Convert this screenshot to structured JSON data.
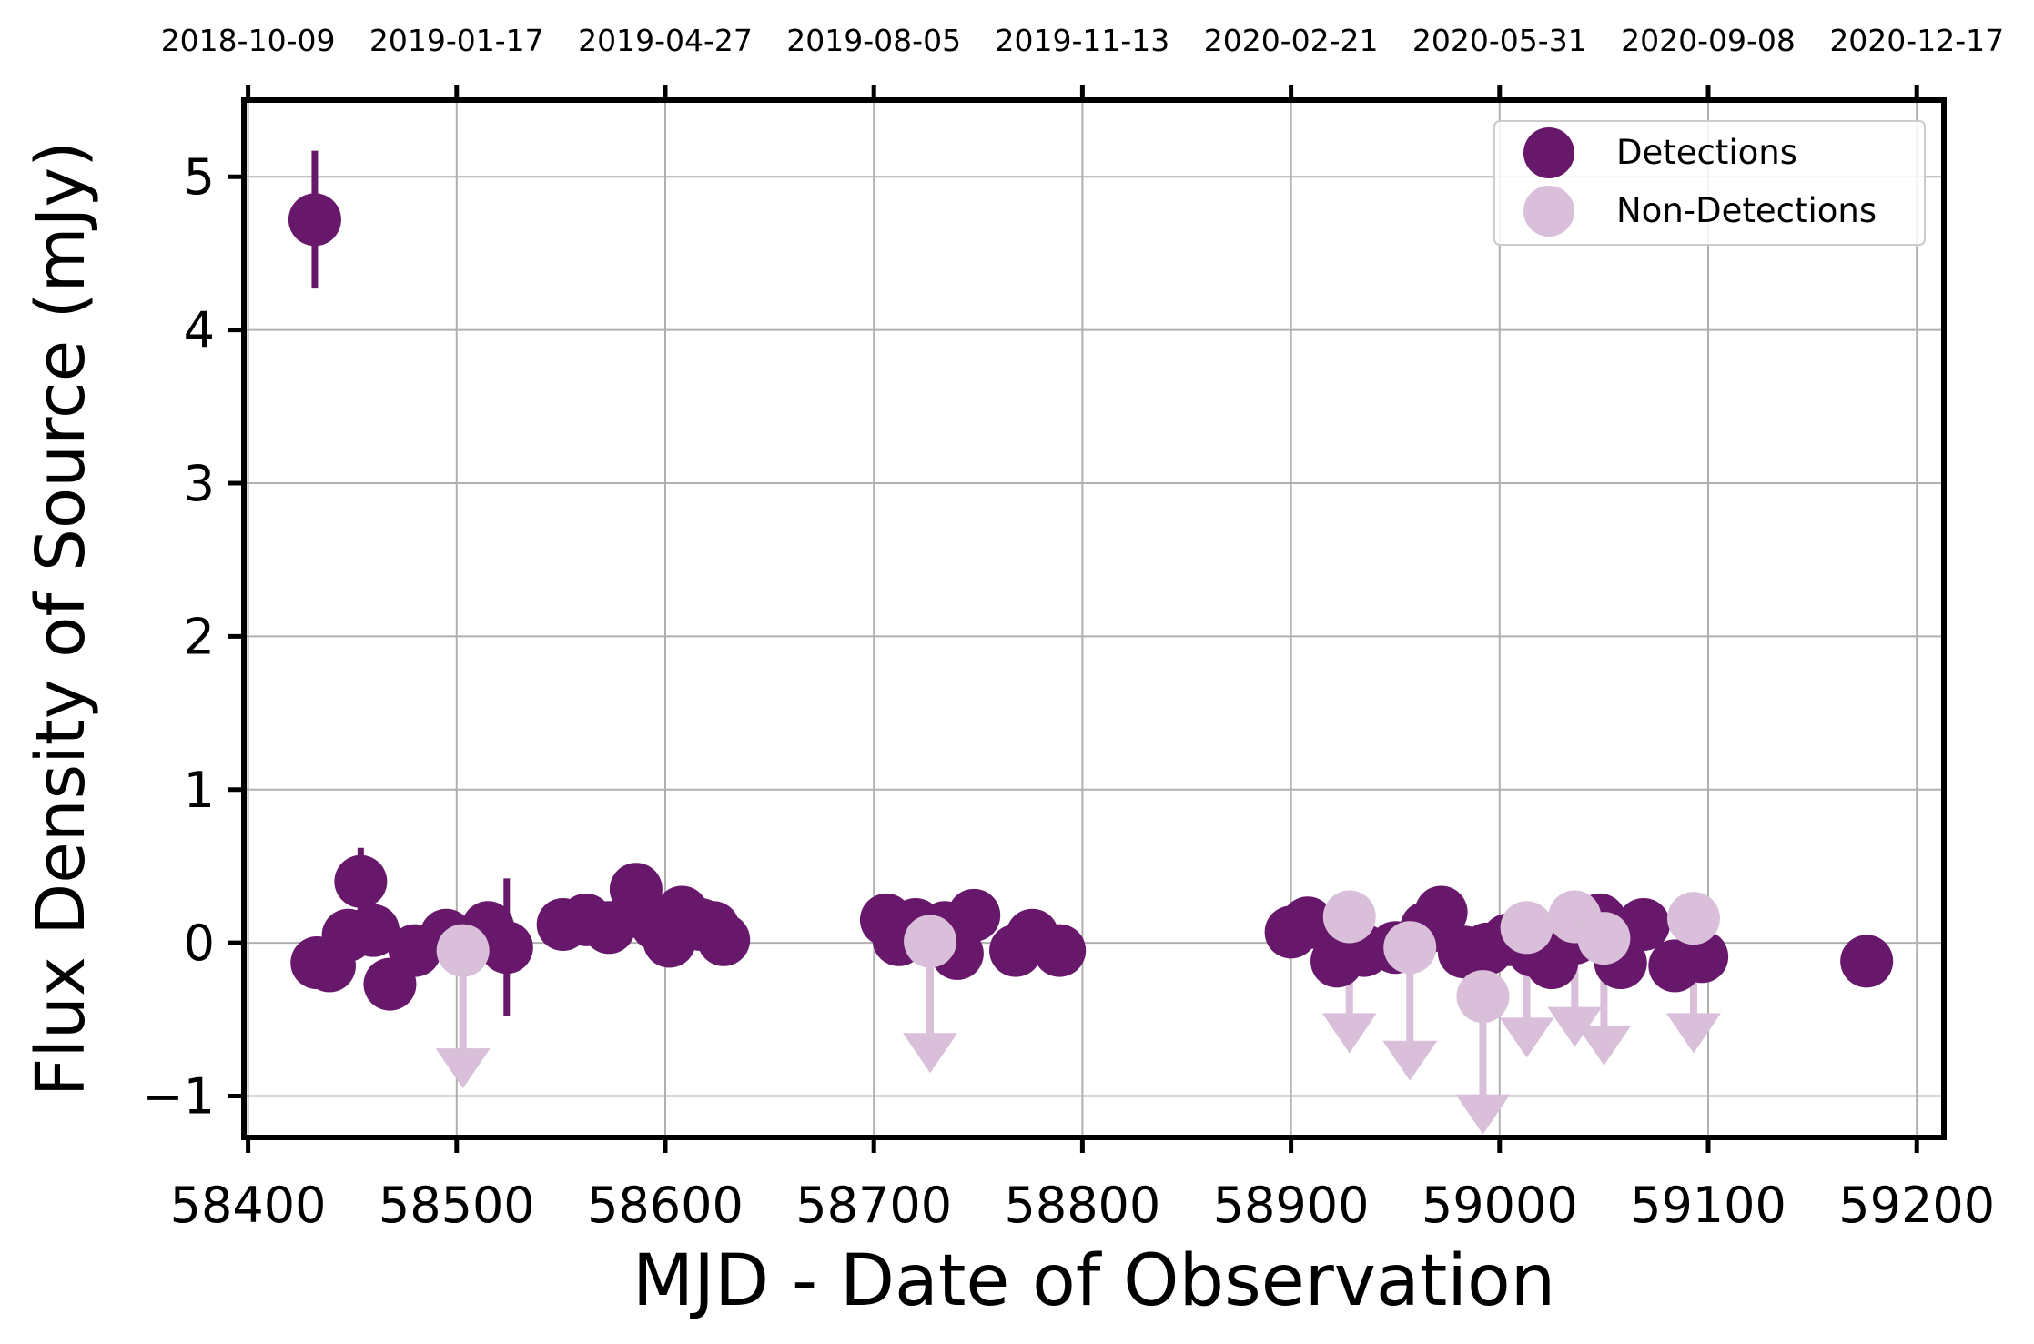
{
  "chart_data": {
    "type": "scatter",
    "xlabel": "MJD - Date of Observation",
    "ylabel": "Flux Density of Source (mJy)",
    "xlim": [
      58398,
      59213
    ],
    "ylim": [
      -1.27,
      5.5
    ],
    "grid": true,
    "legend_position": "top-right",
    "x_ticks": [
      58400,
      58500,
      58600,
      58700,
      58800,
      58900,
      59000,
      59100,
      59200
    ],
    "x_tick_labels": [
      "58400",
      "58500",
      "58600",
      "58700",
      "58800",
      "58900",
      "59000",
      "59100",
      "59200"
    ],
    "y_ticks": [
      -1,
      0,
      1,
      2,
      3,
      4,
      5
    ],
    "y_tick_labels": [
      "−1",
      "0",
      "1",
      "2",
      "3",
      "4",
      "5"
    ],
    "top_axis_ticks": [
      58400,
      58500,
      58600,
      58700,
      58800,
      58900,
      59000,
      59100,
      59200
    ],
    "top_axis_labels": [
      "2018-10-09",
      "2019-01-17",
      "2019-04-27",
      "2019-08-05",
      "2019-11-13",
      "2020-02-21",
      "2020-05-31",
      "2020-09-08",
      "2020-12-17"
    ],
    "series": [
      {
        "name": "Detections",
        "color": "#68186a",
        "marker": "circle",
        "x": [
          58432,
          58433,
          58439,
          58448,
          58454,
          58460,
          58468,
          58480,
          58495,
          58504,
          58515,
          58524,
          58551,
          58562,
          58573,
          58586,
          58588,
          58596,
          58602,
          58608,
          58617,
          58623,
          58628,
          58706,
          58712,
          58720,
          58734,
          58740,
          58748,
          58768,
          58776,
          58789,
          58900,
          58908,
          58922,
          58935,
          58950,
          58965,
          58972,
          58983,
          58994,
          59004,
          59016,
          59025,
          59036,
          59048,
          59058,
          59069,
          59084,
          59097,
          59176
        ],
        "y": [
          4.72,
          -0.13,
          -0.15,
          0.05,
          0.4,
          0.08,
          -0.27,
          -0.05,
          0.05,
          0.0,
          0.1,
          -0.03,
          0.12,
          0.15,
          0.1,
          0.35,
          0.2,
          0.12,
          0.01,
          0.2,
          0.12,
          0.1,
          0.02,
          0.15,
          0.02,
          0.12,
          0.1,
          -0.07,
          0.18,
          -0.05,
          0.05,
          -0.05,
          0.07,
          0.13,
          -0.12,
          -0.05,
          -0.03,
          0.1,
          0.2,
          -0.06,
          -0.04,
          0.02,
          -0.05,
          -0.13,
          0.03,
          0.15,
          -0.13,
          0.12,
          -0.15,
          -0.09,
          -0.12
        ],
        "yerr": [
          0.45,
          null,
          null,
          null,
          0.22,
          null,
          null,
          null,
          null,
          null,
          null,
          0.45,
          null,
          null,
          null,
          null,
          null,
          null,
          null,
          null,
          null,
          null,
          null,
          null,
          null,
          null,
          null,
          null,
          null,
          null,
          null,
          null,
          null,
          null,
          null,
          null,
          null,
          null,
          null,
          null,
          null,
          null,
          null,
          null,
          null,
          null,
          null,
          null,
          null,
          null,
          null
        ]
      },
      {
        "name": "Non-Detections",
        "color": "#d9bfd9",
        "marker": "circle",
        "upper_limit": true,
        "x": [
          58503,
          58727,
          58928,
          58957,
          58992,
          59013,
          59036,
          59050,
          59093
        ],
        "y": [
          -0.05,
          0.01,
          0.17,
          -0.03,
          -0.35,
          0.1,
          0.17,
          0.03,
          0.16
        ],
        "arrow_to": [
          -0.95,
          -0.85,
          -0.72,
          -0.9,
          -1.25,
          -0.75,
          -0.68,
          -0.8,
          -0.72
        ]
      }
    ]
  }
}
